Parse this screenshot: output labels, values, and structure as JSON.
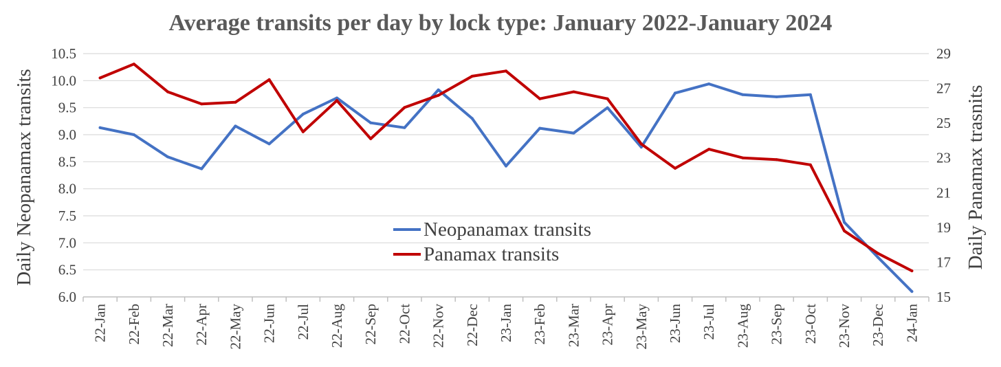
{
  "chart_data": {
    "type": "line",
    "title": "Average transits per day by lock type: January 2022-January 2024",
    "ylabel": "Daily Neopanamax transits",
    "y2label": "Daily Panamax trasnits",
    "categories": [
      "22-Jan",
      "22-Feb",
      "22-Mar",
      "22-Apr",
      "22-May",
      "22-Jun",
      "22-Jul",
      "22-Aug",
      "22-Sep",
      "22-Oct",
      "22-Nov",
      "22-Dec",
      "23-Jan",
      "23-Feb",
      "23-Mar",
      "23-Apr",
      "23-May",
      "23-Jun",
      "23-Jul",
      "23-Aug",
      "23-Sep",
      "23-Oct",
      "23-Nov",
      "23-Dec",
      "24-Jan"
    ],
    "ylim": [
      6.0,
      10.5
    ],
    "yticks": [
      "6.0",
      "6.5",
      "7.0",
      "7.5",
      "8.0",
      "8.5",
      "9.0",
      "9.5",
      "10.0",
      "10.5"
    ],
    "y2lim": [
      15,
      29
    ],
    "y2ticks": [
      "15",
      "17",
      "19",
      "21",
      "23",
      "25",
      "27",
      "29"
    ],
    "grid": true,
    "legend_placement": "center",
    "series": [
      {
        "name": "Neopanamax transits",
        "axis": "left",
        "color": "#4472c4",
        "values": [
          9.13,
          9.0,
          8.59,
          8.37,
          9.16,
          8.83,
          9.38,
          9.68,
          9.22,
          9.13,
          9.83,
          9.3,
          8.42,
          9.12,
          9.03,
          9.5,
          8.77,
          9.77,
          9.94,
          9.74,
          9.7,
          9.74,
          7.38,
          6.73,
          6.1
        ]
      },
      {
        "name": "Panamax transits",
        "axis": "right",
        "color": "#c00000",
        "values": [
          27.6,
          28.4,
          26.8,
          26.1,
          26.2,
          27.5,
          24.5,
          26.3,
          24.1,
          25.9,
          26.6,
          27.7,
          28.0,
          26.4,
          26.8,
          26.4,
          23.8,
          22.4,
          23.5,
          23.0,
          22.9,
          22.6,
          18.8,
          17.5,
          16.5
        ]
      }
    ]
  }
}
